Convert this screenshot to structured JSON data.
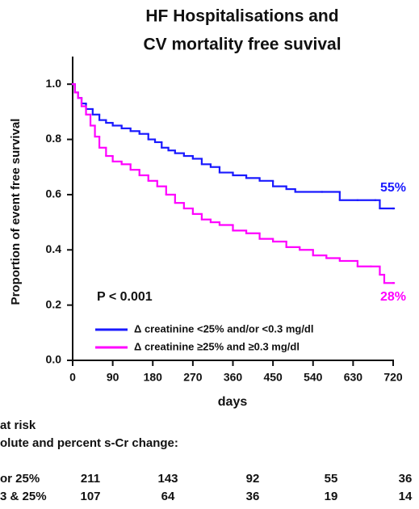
{
  "chart_data": {
    "type": "step",
    "title_lines": [
      "HF Hospitalisations and",
      "CV mortality free suvival"
    ],
    "y_label": "Proportion of event free survival",
    "x_label": "days",
    "xlim": [
      0,
      720
    ],
    "xticks": [
      0,
      90,
      180,
      270,
      360,
      450,
      540,
      630,
      720
    ],
    "ylim": [
      0,
      1.1
    ],
    "yticks": [
      {
        "value": 0,
        "label": "0.0"
      },
      0.2,
      0.4,
      0.6,
      0.8,
      {
        "value": 1,
        "label": "1.0"
      }
    ],
    "annotations": [
      {
        "text": "P < 0.001"
      },
      {
        "text": "55%",
        "color": "#1a1aff"
      },
      {
        "text": "28%",
        "color": "#ff00ff"
      }
    ],
    "series": [
      {
        "name": "Δ creatinine <25% and/or <0.3 mg/dl",
        "color": "#1a1aff",
        "x": [
          0,
          5,
          12,
          20,
          30,
          45,
          60,
          75,
          90,
          110,
          130,
          150,
          170,
          185,
          200,
          215,
          230,
          250,
          270,
          290,
          310,
          330,
          360,
          390,
          420,
          450,
          480,
          500,
          560,
          600,
          640,
          680,
          690,
          720
        ],
        "values": [
          1.0,
          0.97,
          0.95,
          0.93,
          0.91,
          0.89,
          0.87,
          0.86,
          0.85,
          0.84,
          0.83,
          0.82,
          0.8,
          0.79,
          0.77,
          0.76,
          0.75,
          0.74,
          0.73,
          0.71,
          0.7,
          0.68,
          0.67,
          0.66,
          0.65,
          0.63,
          0.62,
          0.61,
          0.61,
          0.58,
          0.58,
          0.58,
          0.55,
          0.55
        ]
      },
      {
        "name": "Δ creatinine ≥25% and ≥0.3 mg/dl",
        "color": "#ff00ff",
        "x": [
          0,
          5,
          12,
          20,
          30,
          40,
          50,
          60,
          75,
          90,
          110,
          130,
          150,
          170,
          190,
          210,
          230,
          250,
          270,
          290,
          310,
          330,
          360,
          390,
          420,
          450,
          480,
          510,
          540,
          570,
          600,
          640,
          670,
          690,
          700,
          720
        ],
        "values": [
          1.0,
          0.97,
          0.95,
          0.92,
          0.89,
          0.85,
          0.81,
          0.77,
          0.74,
          0.72,
          0.71,
          0.69,
          0.67,
          0.65,
          0.63,
          0.6,
          0.57,
          0.55,
          0.53,
          0.51,
          0.5,
          0.49,
          0.47,
          0.46,
          0.44,
          0.43,
          0.41,
          0.4,
          0.38,
          0.37,
          0.36,
          0.34,
          0.34,
          0.31,
          0.28,
          0.28
        ]
      }
    ]
  },
  "risk_table": {
    "title": "at risk",
    "subtitle": "olute and percent s-Cr change:",
    "rows": [
      {
        "label": "or 25%",
        "counts": [
          "211",
          "143",
          "92",
          "55",
          "36"
        ]
      },
      {
        "label": "3 & 25%",
        "counts": [
          "107",
          "64",
          "36",
          "19",
          "14"
        ]
      }
    ]
  }
}
